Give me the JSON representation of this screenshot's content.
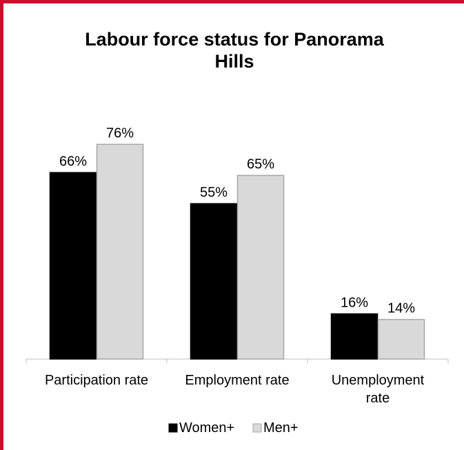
{
  "chart_data": {
    "type": "bar",
    "title_lines": [
      "Labour force status for Panorama",
      "Hills"
    ],
    "categories": [
      [
        "Participation rate"
      ],
      [
        "Employment rate"
      ],
      [
        "Unemployment",
        "rate"
      ]
    ],
    "series": [
      {
        "name": "Women+",
        "values": [
          66,
          55,
          16
        ],
        "labels": [
          "66%",
          "55%",
          "16%"
        ]
      },
      {
        "name": "Men+",
        "values": [
          76,
          65,
          14
        ],
        "labels": [
          "76%",
          "65%",
          "14%"
        ]
      }
    ],
    "ylim": [
      0,
      100
    ],
    "grid": false,
    "legend_position": "bottom",
    "colors": {
      "frame": "#c8102e",
      "women": "#000000",
      "men": "#d9d9d9",
      "men_border": "#a6a6a6",
      "axis": "#bfbfbf"
    }
  }
}
